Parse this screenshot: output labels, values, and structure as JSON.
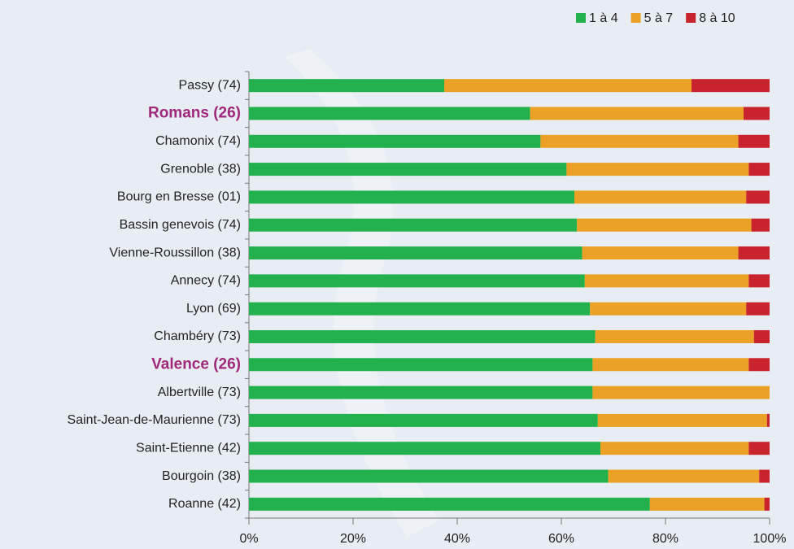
{
  "chart_data": {
    "type": "stacked-bar-horizontal",
    "categories": [
      "Passy (74)",
      "Romans (26)",
      "Chamonix (74)",
      "Grenoble (38)",
      "Bourg en Bresse (01)",
      "Bassin genevois (74)",
      "Vienne-Roussillon (38)",
      "Annecy (74)",
      "Lyon (69)",
      "Chambéry (73)",
      "Valence (26)",
      "Albertville (73)",
      "Saint-Jean-de-Maurienne (73)",
      "Saint-Etienne (42)",
      "Bourgoin (38)",
      "Roanne (42)"
    ],
    "highlighted": [
      1,
      10
    ],
    "highlight_color": "#a0287c",
    "series": [
      {
        "name": "1 à 4",
        "color": "#22b14c",
        "values": [
          37.5,
          54,
          56,
          61,
          62.5,
          63,
          64,
          64.5,
          65.5,
          66.5,
          66,
          66,
          67,
          67.5,
          69,
          77
        ]
      },
      {
        "name": "5 à 7",
        "color": "#eaa125",
        "values": [
          47.5,
          41,
          38,
          35,
          33,
          33.5,
          30,
          31.5,
          30,
          30.5,
          30,
          34,
          32.5,
          28.5,
          29,
          22
        ]
      },
      {
        "name": "8 à 10",
        "color": "#c9232e",
        "values": [
          15,
          5,
          6,
          4,
          4.5,
          3.5,
          6,
          4,
          4.5,
          3,
          4,
          0,
          0.5,
          4,
          2,
          1
        ]
      }
    ],
    "xlim": [
      0,
      100
    ],
    "xticks": [
      {
        "value": 0,
        "label": "0%"
      },
      {
        "value": 20,
        "label": "20%"
      },
      {
        "value": 40,
        "label": "40%"
      },
      {
        "value": 60,
        "label": "60%"
      },
      {
        "value": 80,
        "label": "80%"
      },
      {
        "value": 100,
        "label": "100%"
      }
    ],
    "legend": "top-right"
  }
}
